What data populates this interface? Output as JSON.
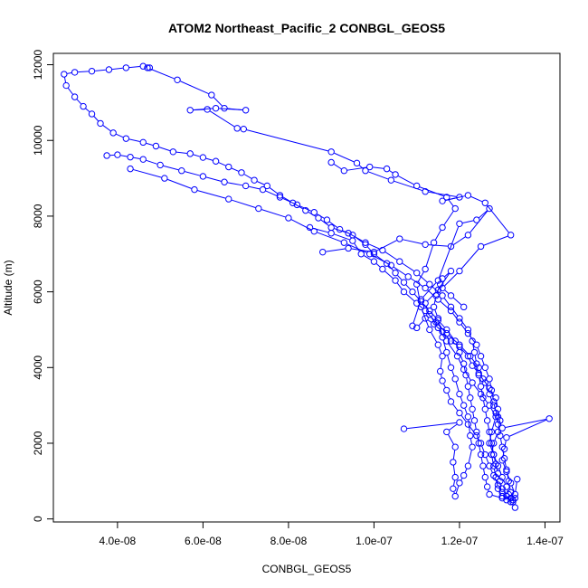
{
  "chart_data": {
    "type": "line",
    "title": "ATOM2 Northeast_Pacific_2 CONBGL_GEOS5",
    "xlabel": "CONBGL_GEOS5",
    "ylabel": "Altitude (m)",
    "xlim": [
      2.5e-08,
      1.435e-07
    ],
    "ylim": [
      -80,
      12300
    ],
    "x_ticks": [
      4e-08,
      6e-08,
      8e-08,
      1e-07,
      1.2e-07,
      1.4e-07
    ],
    "x_tick_labels": [
      "4.0e-08",
      "6.0e-08",
      "8.0e-08",
      "1.0e-07",
      "1.2e-07",
      "1.4e-07"
    ],
    "y_ticks": [
      0,
      2000,
      4000,
      6000,
      8000,
      10000,
      12000
    ],
    "y_tick_labels": [
      "0",
      "2000",
      "4000",
      "6000",
      "8000",
      "10000",
      "12000"
    ],
    "grid": false,
    "series_color": "#0000ff",
    "marker": "open-circle",
    "series": [
      {
        "points": [
          [
            1.33e-07,
            300
          ],
          [
            1.32e-07,
            450
          ],
          [
            1.31e-07,
            600
          ],
          [
            1.3e-07,
            800
          ],
          [
            1.295e-07,
            1000
          ],
          [
            1.29e-07,
            1200
          ],
          [
            1.285e-07,
            1450
          ],
          [
            1.28e-07,
            1700
          ],
          [
            1.275e-07,
            2000
          ],
          [
            1.27e-07,
            2300
          ],
          [
            1.265e-07,
            2600
          ],
          [
            1.26e-07,
            2900
          ],
          [
            1.255e-07,
            3200
          ],
          [
            1.25e-07,
            3500
          ],
          [
            1.245e-07,
            3800
          ],
          [
            1.24e-07,
            4100
          ],
          [
            1.235e-07,
            4400
          ],
          [
            1.23e-07,
            4700
          ],
          [
            1.22e-07,
            5000
          ],
          [
            1.2e-07,
            5300
          ],
          [
            1.18e-07,
            5600
          ],
          [
            1.16e-07,
            5900
          ],
          [
            1.13e-07,
            6200
          ],
          [
            1.1e-07,
            6500
          ],
          [
            1.06e-07,
            6800
          ],
          [
            1.02e-07,
            7100
          ],
          [
            9.8e-08,
            7300
          ],
          [
            9.4e-08,
            7550
          ],
          [
            9e-08,
            7700
          ],
          [
            8.7e-08,
            7950
          ],
          [
            8.4e-08,
            8150
          ],
          [
            8.1e-08,
            8350
          ],
          [
            7.8e-08,
            8550
          ],
          [
            7.5e-08,
            8800
          ],
          [
            7.2e-08,
            8950
          ],
          [
            6.9e-08,
            9150
          ],
          [
            6.6e-08,
            9300
          ],
          [
            6.3e-08,
            9450
          ],
          [
            6e-08,
            9550
          ],
          [
            5.7e-08,
            9650
          ],
          [
            5.3e-08,
            9700
          ],
          [
            4.9e-08,
            9850
          ],
          [
            4.6e-08,
            9950
          ],
          [
            4.2e-08,
            10050
          ],
          [
            3.9e-08,
            10200
          ],
          [
            3.6e-08,
            10450
          ],
          [
            3.4e-08,
            10700
          ],
          [
            3.2e-08,
            10900
          ],
          [
            3e-08,
            11150
          ],
          [
            2.8e-08,
            11450
          ],
          [
            2.75e-08,
            11750
          ],
          [
            3e-08,
            11800
          ],
          [
            3.4e-08,
            11830
          ],
          [
            3.8e-08,
            11870
          ],
          [
            4.2e-08,
            11920
          ],
          [
            4.6e-08,
            11960
          ],
          [
            4.75e-08,
            11920
          ]
        ]
      },
      {
        "points": [
          [
            4.7e-08,
            11920
          ],
          [
            5.4e-08,
            11600
          ],
          [
            6.2e-08,
            11200
          ],
          [
            6.5e-08,
            10850
          ],
          [
            7e-08,
            10800
          ],
          [
            6.3e-08,
            10850
          ],
          [
            5.7e-08,
            10800
          ],
          [
            6.1e-08,
            10820
          ],
          [
            6.8e-08,
            10320
          ],
          [
            6.95e-08,
            10300
          ],
          [
            9e-08,
            9700
          ],
          [
            9.6e-08,
            9400
          ],
          [
            9.8e-08,
            9200
          ],
          [
            1.04e-07,
            8950
          ],
          [
            1.12e-07,
            8650
          ],
          [
            1.2e-07,
            8500
          ],
          [
            1.16e-07,
            8400
          ],
          [
            1.22e-07,
            8550
          ],
          [
            1.26e-07,
            8350
          ],
          [
            1.32e-07,
            7500
          ],
          [
            1.25e-07,
            7200
          ],
          [
            1.2e-07,
            6550
          ],
          [
            1.16e-07,
            6100
          ],
          [
            1.18e-07,
            5900
          ],
          [
            1.21e-07,
            5600
          ]
        ]
      },
      {
        "points": [
          [
            3.75e-08,
            9600
          ],
          [
            4e-08,
            9620
          ],
          [
            4.3e-08,
            9560
          ],
          [
            4.6e-08,
            9500
          ],
          [
            5e-08,
            9350
          ],
          [
            5.5e-08,
            9200
          ],
          [
            6e-08,
            9050
          ],
          [
            6.5e-08,
            8900
          ],
          [
            7e-08,
            8800
          ],
          [
            7.4e-08,
            8700
          ],
          [
            7.8e-08,
            8500
          ],
          [
            8.2e-08,
            8300
          ],
          [
            8.6e-08,
            8100
          ],
          [
            8.9e-08,
            7900
          ],
          [
            9.2e-08,
            7650
          ],
          [
            9.5e-08,
            7500
          ],
          [
            9.8e-08,
            7250
          ],
          [
            1e-07,
            7000
          ],
          [
            1.03e-07,
            6750
          ],
          [
            1.05e-07,
            6500
          ],
          [
            1.07e-07,
            6250
          ],
          [
            1.09e-07,
            6000
          ],
          [
            1.11e-07,
            5750
          ],
          [
            1.13e-07,
            5500
          ],
          [
            1.15e-07,
            5250
          ],
          [
            1.17e-07,
            5000
          ],
          [
            1.19e-07,
            4700
          ],
          [
            1.2e-07,
            4400
          ],
          [
            1.21e-07,
            4100
          ],
          [
            1.215e-07,
            3800
          ],
          [
            1.22e-07,
            3500
          ],
          [
            1.225e-07,
            3200
          ],
          [
            1.23e-07,
            2900
          ],
          [
            1.235e-07,
            2600
          ],
          [
            1.24e-07,
            2300
          ],
          [
            1.245e-07,
            2000
          ],
          [
            1.25e-07,
            1700
          ],
          [
            1.255e-07,
            1400
          ],
          [
            1.26e-07,
            1100
          ],
          [
            1.265e-07,
            850
          ],
          [
            1.27e-07,
            650
          ],
          [
            1.3e-07,
            550
          ],
          [
            1.32e-07,
            550
          ],
          [
            1.33e-07,
            550
          ]
        ]
      },
      {
        "points": [
          [
            4.3e-08,
            9250
          ],
          [
            5.1e-08,
            9000
          ],
          [
            5.8e-08,
            8700
          ],
          [
            6.6e-08,
            8450
          ],
          [
            7.3e-08,
            8200
          ],
          [
            8e-08,
            7950
          ],
          [
            8.6e-08,
            7600
          ],
          [
            9.3e-08,
            7300
          ],
          [
            9.9e-08,
            7000
          ],
          [
            1.04e-07,
            6700
          ],
          [
            1.08e-07,
            6400
          ],
          [
            1.12e-07,
            6100
          ],
          [
            1.15e-07,
            5800
          ],
          [
            1.18e-07,
            5500
          ],
          [
            1.2e-07,
            5200
          ],
          [
            1.22e-07,
            4900
          ],
          [
            1.24e-07,
            4600
          ],
          [
            1.25e-07,
            4300
          ],
          [
            1.26e-07,
            4000
          ],
          [
            1.27e-07,
            3700
          ],
          [
            1.275e-07,
            3400
          ],
          [
            1.28e-07,
            3100
          ],
          [
            1.285e-07,
            2800
          ],
          [
            1.29e-07,
            2500
          ],
          [
            1.295e-07,
            2200
          ],
          [
            1.3e-07,
            1900
          ],
          [
            1.305e-07,
            1600
          ],
          [
            1.31e-07,
            1300
          ],
          [
            1.315e-07,
            1000
          ],
          [
            1.32e-07,
            700
          ],
          [
            1.325e-07,
            500
          ]
        ]
      },
      {
        "points": [
          [
            8.8e-08,
            7050
          ],
          [
            9.4e-08,
            7150
          ],
          [
            1e-07,
            7050
          ],
          [
            1.06e-07,
            7400
          ],
          [
            1.12e-07,
            7250
          ],
          [
            1.18e-07,
            7200
          ],
          [
            1.22e-07,
            7500
          ],
          [
            1.27e-07,
            8200
          ],
          [
            1.24e-07,
            7900
          ],
          [
            1.2e-07,
            7800
          ],
          [
            1.15e-07,
            6300
          ],
          [
            1.11e-07,
            5800
          ],
          [
            1.09e-07,
            5100
          ],
          [
            1.1e-07,
            5050
          ],
          [
            1.12e-07,
            5300
          ],
          [
            1.14e-07,
            5150
          ],
          [
            1.16e-07,
            4950
          ],
          [
            1.18e-07,
            4700
          ],
          [
            1.2e-07,
            4550
          ],
          [
            1.22e-07,
            4300
          ],
          [
            1.23e-07,
            4050
          ],
          [
            1.245e-07,
            3850
          ],
          [
            1.26e-07,
            3600
          ],
          [
            1.27e-07,
            3300
          ],
          [
            1.28e-07,
            3000
          ],
          [
            1.29e-07,
            2700
          ],
          [
            1.3e-07,
            2400
          ],
          [
            1.41e-07,
            2650
          ],
          [
            1.31e-07,
            2150
          ],
          [
            1.305e-07,
            1850
          ],
          [
            1.3e-07,
            1550
          ],
          [
            1.31e-07,
            1250
          ],
          [
            1.32e-07,
            950
          ],
          [
            1.33e-07,
            650
          ],
          [
            1.335e-07,
            1050
          ]
        ]
      },
      {
        "points": [
          [
            1.07e-07,
            2380
          ],
          [
            1.2e-07,
            2550
          ],
          [
            1.17e-07,
            2300
          ],
          [
            1.19e-07,
            1900
          ],
          [
            1.185e-07,
            1500
          ],
          [
            1.19e-07,
            1100
          ],
          [
            1.185e-07,
            800
          ],
          [
            1.19e-07,
            600
          ],
          [
            1.2e-07,
            950
          ],
          [
            1.21e-07,
            1150
          ],
          [
            1.22e-07,
            1400
          ],
          [
            1.23e-07,
            1900
          ],
          [
            1.225e-07,
            2200
          ],
          [
            1.22e-07,
            2700
          ],
          [
            1.21e-07,
            3000
          ],
          [
            1.2e-07,
            3300
          ],
          [
            1.19e-07,
            3700
          ],
          [
            1.18e-07,
            4000
          ],
          [
            1.17e-07,
            4400
          ],
          [
            1.16e-07,
            4800
          ],
          [
            1.15e-07,
            5300
          ],
          [
            1.14e-07,
            5600
          ],
          [
            1.145e-07,
            5900
          ],
          [
            1.155e-07,
            6200
          ],
          [
            1.16e-07,
            6350
          ],
          [
            1.18e-07,
            6550
          ],
          [
            1.15e-07,
            6050
          ],
          [
            1.12e-07,
            5700
          ],
          [
            1.13e-07,
            5400
          ],
          [
            1.15e-07,
            5050
          ],
          [
            1.17e-07,
            4700
          ],
          [
            1.195e-07,
            4300
          ],
          [
            1.21e-07,
            3950
          ],
          [
            1.23e-07,
            3600
          ],
          [
            1.25e-07,
            3300
          ],
          [
            1.27e-07,
            3000
          ],
          [
            1.285e-07,
            2700
          ],
          [
            1.275e-07,
            2300
          ],
          [
            1.27e-07,
            2000
          ],
          [
            1.28e-07,
            1700
          ],
          [
            1.29e-07,
            1400
          ],
          [
            1.3e-07,
            1100
          ],
          [
            1.31e-07,
            850
          ],
          [
            1.315e-07,
            650
          ],
          [
            1.32e-07,
            550
          ],
          [
            1.325e-07,
            450
          ]
        ]
      },
      {
        "points": [
          [
            9e-08,
            9420
          ],
          [
            9.3e-08,
            9200
          ],
          [
            9.9e-08,
            9300
          ],
          [
            1.03e-07,
            9250
          ],
          [
            1.05e-07,
            9100
          ],
          [
            1.1e-07,
            8800
          ],
          [
            1.17e-07,
            8500
          ],
          [
            1.19e-07,
            8200
          ],
          [
            1.16e-07,
            7700
          ],
          [
            1.14e-07,
            7300
          ],
          [
            1.12e-07,
            6600
          ],
          [
            1.1e-07,
            6200
          ],
          [
            1.11e-07,
            5600
          ],
          [
            1.13e-07,
            5000
          ],
          [
            1.15e-07,
            4600
          ],
          [
            1.16e-07,
            4300
          ],
          [
            1.155e-07,
            3900
          ],
          [
            1.16e-07,
            3650
          ],
          [
            1.17e-07,
            3400
          ],
          [
            1.18e-07,
            3100
          ],
          [
            1.2e-07,
            2800
          ],
          [
            1.22e-07,
            2500
          ],
          [
            1.24e-07,
            2200
          ],
          [
            1.25e-07,
            2000
          ],
          [
            1.26e-07,
            1700
          ],
          [
            1.27e-07,
            1400
          ],
          [
            1.28e-07,
            1150
          ],
          [
            1.29e-07,
            900
          ],
          [
            1.3e-07,
            700
          ],
          [
            1.31e-07,
            500
          ]
        ]
      },
      {
        "points": [
          [
            8.5e-08,
            7700
          ],
          [
            9e-08,
            7550
          ],
          [
            9.5e-08,
            7350
          ],
          [
            9.7e-08,
            7000
          ],
          [
            1e-07,
            6800
          ],
          [
            1.02e-07,
            6600
          ],
          [
            1.05e-07,
            6300
          ],
          [
            1.07e-07,
            6000
          ],
          [
            1.1e-07,
            5700
          ],
          [
            1.12e-07,
            5500
          ],
          [
            1.145e-07,
            5200
          ],
          [
            1.17e-07,
            4900
          ],
          [
            1.2e-07,
            4600
          ],
          [
            1.225e-07,
            4300
          ],
          [
            1.245e-07,
            4000
          ],
          [
            1.255e-07,
            3700
          ],
          [
            1.27e-07,
            3450
          ],
          [
            1.285e-07,
            3200
          ],
          [
            1.29e-07,
            2900
          ],
          [
            1.295e-07,
            2600
          ],
          [
            1.29e-07,
            2300
          ],
          [
            1.28e-07,
            2000
          ],
          [
            1.275e-07,
            1700
          ],
          [
            1.28e-07,
            1400
          ],
          [
            1.285e-07,
            1100
          ],
          [
            1.29e-07,
            800
          ],
          [
            1.3e-07,
            600
          ]
        ]
      }
    ]
  }
}
